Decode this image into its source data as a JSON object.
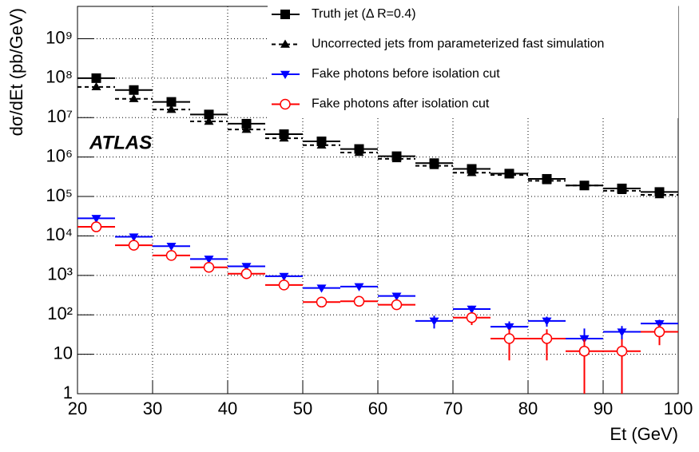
{
  "chart_data": {
    "type": "errorbar",
    "y_label": "dσ/dEt (pb/GeV)",
    "x_label": "Et (GeV)",
    "annotation": "ATLAS",
    "log_y": true,
    "grid": true,
    "xlim": [
      20,
      100
    ],
    "xticks": [
      20,
      30,
      40,
      50,
      60,
      70,
      80,
      90,
      100
    ],
    "ylim": [
      1,
      6600000000
    ],
    "yticks": [
      1,
      10,
      {
        "value": 100,
        "label": "10²"
      },
      {
        "value": 1000,
        "label": "10³"
      },
      {
        "value": 10000,
        "label": "10⁴"
      },
      {
        "value": 100000,
        "label": "10⁵"
      },
      {
        "value": 1000000,
        "label": "10⁶"
      },
      {
        "value": 10000000,
        "label": "10⁷"
      },
      {
        "value": 100000000,
        "label": "10⁸"
      },
      {
        "value": 1000000000,
        "label": "10⁹"
      }
    ],
    "x": [
      22.5,
      27.5,
      32.5,
      37.5,
      42.5,
      47.5,
      52.5,
      57.5,
      62.5,
      67.5,
      72.5,
      77.5,
      82.5,
      87.5,
      92.5,
      97.5
    ],
    "series": [
      {
        "name": "Truth jet (Δ R=0.4)",
        "color": "#000000",
        "marker": "square",
        "dashed": false,
        "values": [
          100000000,
          50000000,
          25000000,
          12000000,
          7000000,
          3800000,
          2500000,
          1600000,
          1050000,
          700000,
          500000,
          380000,
          280000,
          190000,
          160000,
          130000
        ]
      },
      {
        "name": "Uncorrected jets from parameterized fast simulation",
        "color": "#000000",
        "marker": "triangle-up",
        "dashed": true,
        "values": [
          60000000,
          30000000,
          16000000,
          8000000,
          5000000,
          3000000,
          2000000,
          1300000,
          900000,
          600000,
          400000,
          350000,
          250000,
          190000,
          140000,
          110000
        ]
      },
      {
        "name": "Fake photons before isolation cut",
        "color": "#0000ff",
        "marker": "triangle-down",
        "dashed": false,
        "values": [
          28000,
          9500,
          5500,
          2600,
          1700,
          950,
          480,
          520,
          300,
          70,
          140,
          50,
          70,
          25,
          37,
          60
        ],
        "errors": [
          0,
          0,
          0,
          0,
          0,
          0,
          0,
          0,
          0,
          25,
          30,
          18,
          20,
          20,
          15,
          15
        ]
      },
      {
        "name": "Fake photons after isolation cut",
        "color": "#ff0000",
        "marker": "circle-open",
        "dashed": false,
        "values": [
          17000,
          5800,
          3200,
          1600,
          1100,
          570,
          210,
          220,
          180,
          null,
          85,
          25,
          25,
          12,
          12,
          37
        ],
        "errors": [
          0,
          0,
          0,
          0,
          0,
          0,
          0,
          0,
          0,
          null,
          30,
          18,
          18,
          12,
          12,
          20
        ]
      }
    ]
  }
}
